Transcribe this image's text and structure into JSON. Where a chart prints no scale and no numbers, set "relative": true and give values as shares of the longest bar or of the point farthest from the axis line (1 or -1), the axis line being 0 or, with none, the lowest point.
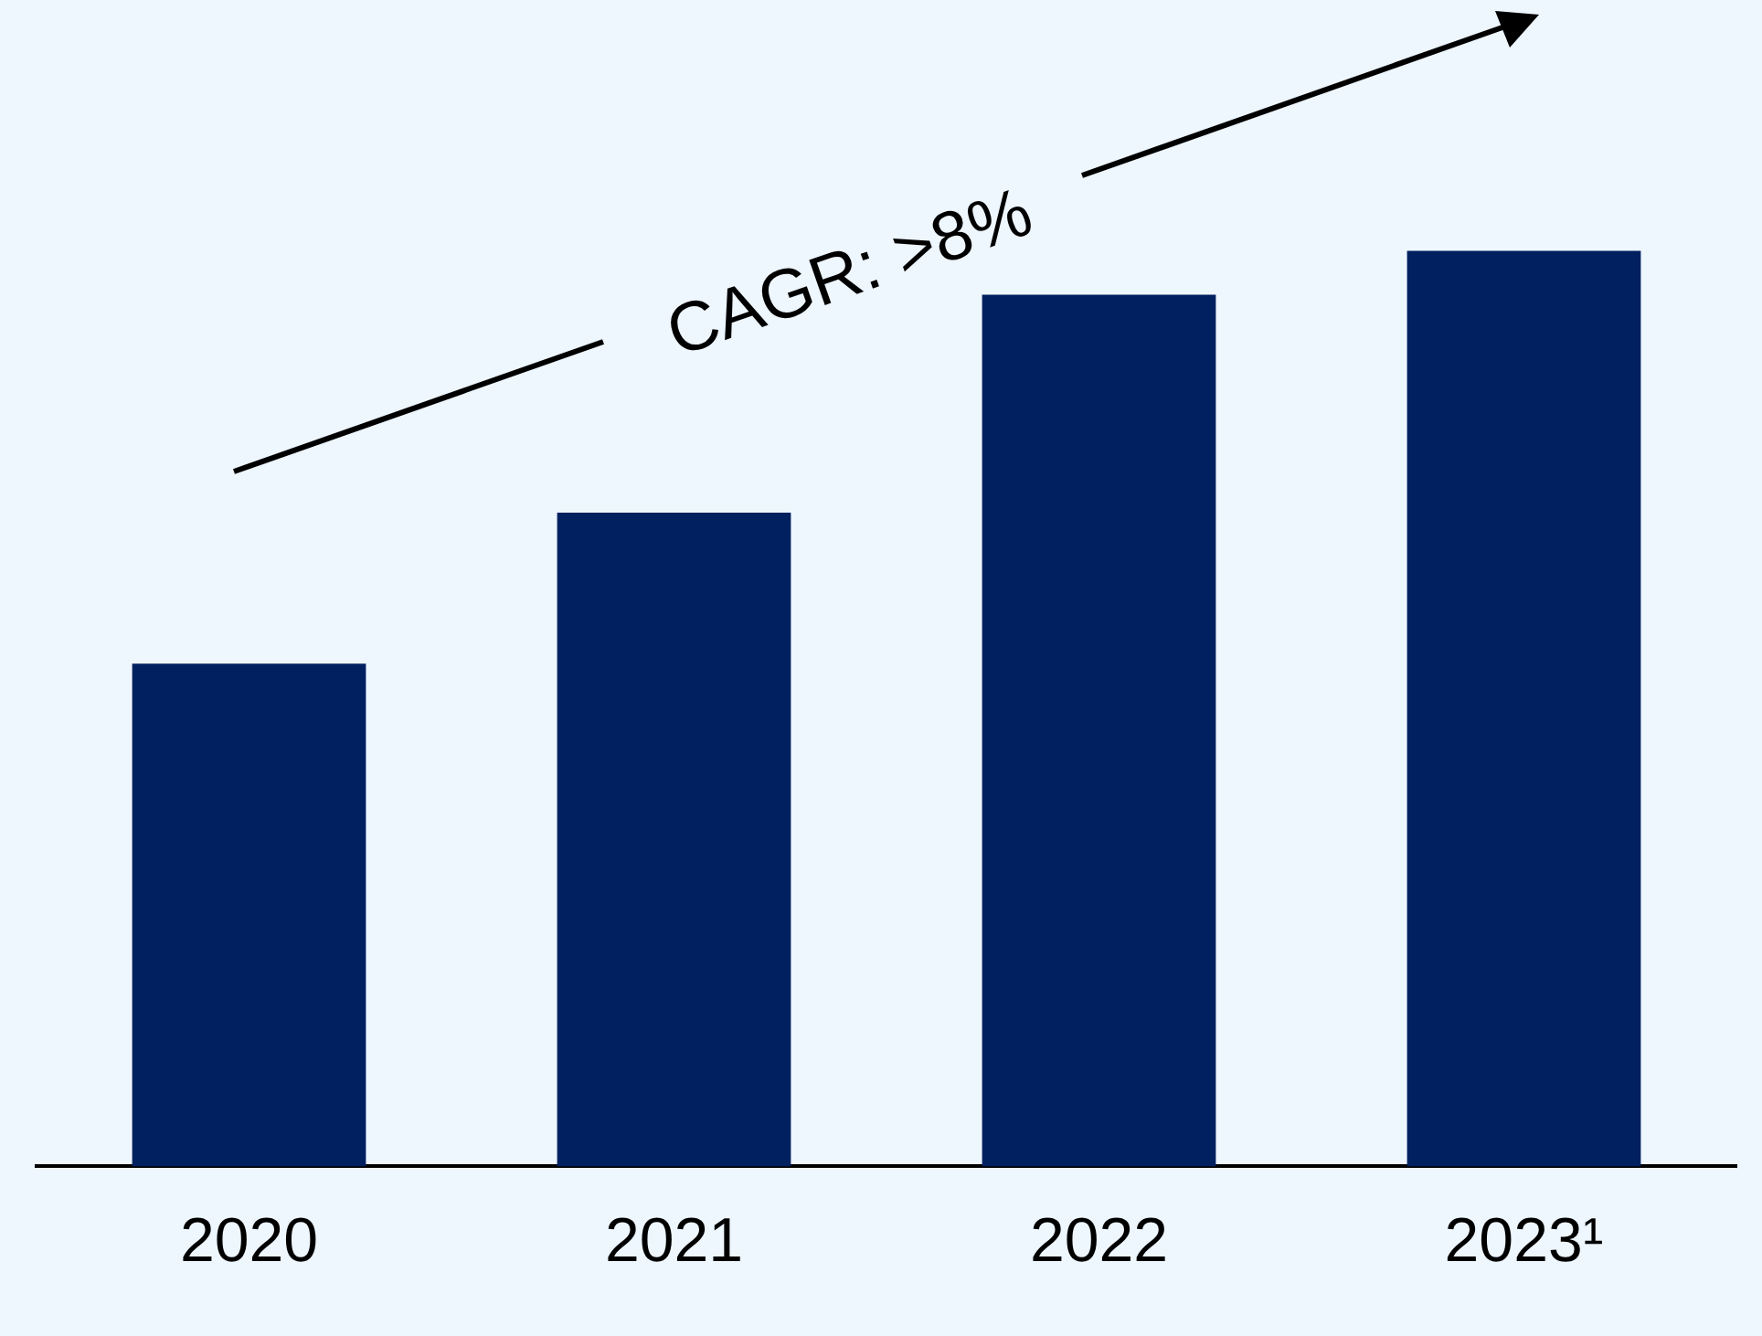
{
  "chart_data": {
    "type": "bar",
    "relative": true,
    "categories": [
      "2020",
      "2021",
      "2022",
      "2023¹"
    ],
    "values": [
      0.549,
      0.714,
      0.952,
      1
    ],
    "color": "#002060",
    "grid": false,
    "legend": false,
    "annotations": [
      "CAGR: >8%"
    ]
  }
}
